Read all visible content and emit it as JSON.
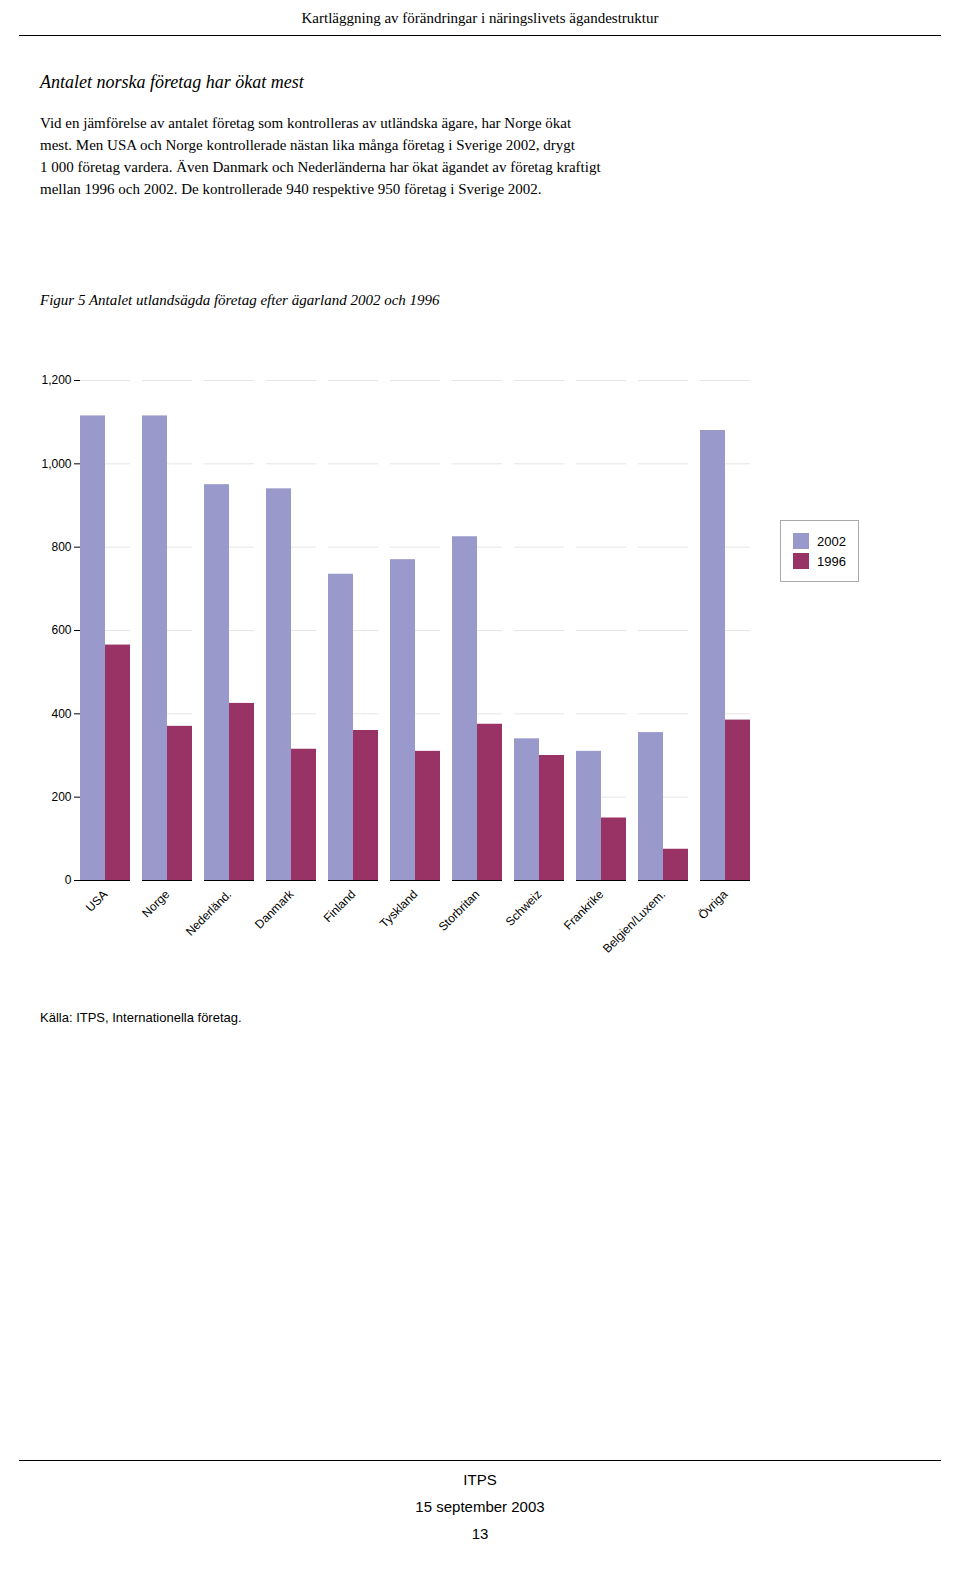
{
  "header": "Kartläggning av förändringar i näringslivets ägandestruktur",
  "title": "Antalet norska företag har ökat mest",
  "body": [
    "Vid en jämförelse av antalet företag som kontrolleras av utländska ägare, har Norge ökat",
    "mest. Men USA och Norge kontrollerade nästan lika många företag i Sverige 2002, drygt",
    "1 000 företag vardera. Även Danmark och Nederländerna har ökat ägandet av företag kraftigt",
    "mellan 1996 och 2002. De kontrollerade 940 respektive 950 företag i Sverige 2002."
  ],
  "footer": [
    "ITPS",
    "15 september 2003",
    "13"
  ],
  "chart_data": {
    "type": "bar",
    "title": "Figur 5 Antalet utlandsägda företag efter ägarland 2002 och 1996",
    "source": "Källa: ITPS, Internationella företag.",
    "categories": [
      "USA",
      "Norge",
      "Nederländ.",
      "Danmark",
      "Finland",
      "Tyskland",
      "Storbritan",
      "Schweiz",
      "Frankrike",
      "Belgien/Luxem.",
      "Övriga"
    ],
    "series": [
      {
        "name": "2002",
        "color": "#9999CC",
        "values": [
          1115,
          1115,
          950,
          940,
          735,
          770,
          825,
          340,
          310,
          355,
          1080
        ]
      },
      {
        "name": "1996",
        "color": "#993366",
        "values": [
          565,
          370,
          425,
          315,
          360,
          310,
          375,
          300,
          150,
          75,
          385
        ]
      }
    ],
    "ylim": [
      0,
      1200
    ],
    "yticks": [
      0,
      200,
      400,
      600,
      800,
      1000,
      1200
    ],
    "grid": true,
    "legend": "right"
  }
}
